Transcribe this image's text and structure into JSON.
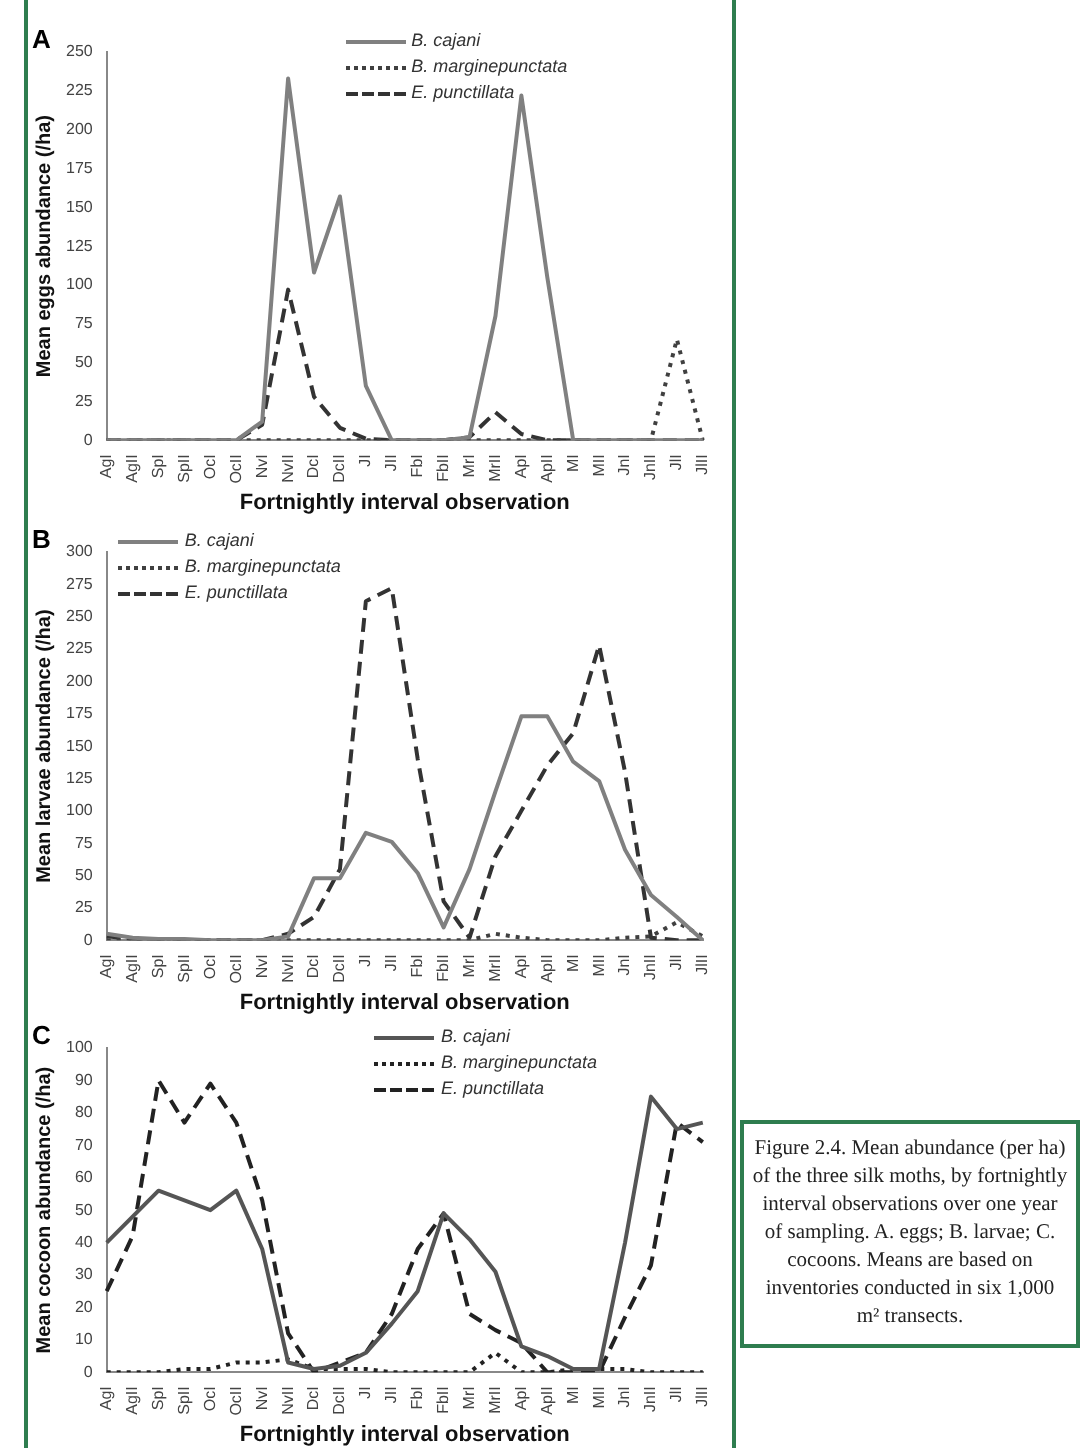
{
  "chart_data": [
    {
      "type": "line",
      "title": "A",
      "xlabel": "Fortnightly interval observation",
      "ylabel": "Mean eggs abundance (/ha)",
      "categories": [
        "AgI",
        "AgII",
        "SpI",
        "SpII",
        "OcI",
        "OcII",
        "NvI",
        "NvII",
        "DcI",
        "DcII",
        "JI",
        "JII",
        "FbI",
        "FbII",
        "MrI",
        "MrII",
        "ApI",
        "ApII",
        "MI",
        "MII",
        "JnI",
        "JnII",
        "JlI",
        "JlII"
      ],
      "series": [
        {
          "name": "B. cajani",
          "color": "#808080",
          "line_style": "solid",
          "values": [
            0,
            0,
            0,
            0,
            0,
            0,
            12,
            233,
            108,
            157,
            35,
            0,
            0,
            0,
            2,
            80,
            222,
            105,
            0,
            0,
            0,
            0,
            0,
            0
          ]
        },
        {
          "name": "B. marginepunctata",
          "color": "#404040",
          "line_style": "dotted",
          "values": [
            0,
            0,
            0,
            0,
            0,
            0,
            0,
            0,
            0,
            0,
            0,
            0,
            0,
            0,
            0,
            0,
            0,
            0,
            0,
            0,
            0,
            0,
            65,
            0
          ]
        },
        {
          "name": "E. punctillata",
          "color": "#333333",
          "line_style": "dashed",
          "values": [
            0,
            0,
            0,
            0,
            0,
            0,
            10,
            97,
            28,
            8,
            1,
            0,
            0,
            0,
            2,
            18,
            4,
            0,
            0,
            0,
            0,
            0,
            0,
            0
          ]
        }
      ],
      "ylim": [
        0,
        250
      ],
      "yticks": [
        0,
        25,
        50,
        75,
        100,
        125,
        150,
        175,
        200,
        225,
        250
      ],
      "grid": false,
      "legend": "top",
      "marker": "none"
    },
    {
      "type": "line",
      "title": "B",
      "xlabel": "Fortnightly interval observation",
      "ylabel": "Mean larvae abundance (/ha)",
      "categories": [
        "AgI",
        "AgII",
        "SpI",
        "SpII",
        "OcI",
        "OcII",
        "NvI",
        "NvII",
        "DcI",
        "DcII",
        "JI",
        "JII",
        "FbI",
        "FbII",
        "MrI",
        "MrII",
        "ApI",
        "ApII",
        "MI",
        "MII",
        "JnI",
        "JnII",
        "JlI",
        "JlII"
      ],
      "series": [
        {
          "name": "B. cajani",
          "color": "#808080",
          "line_style": "solid",
          "values": [
            5,
            2,
            1,
            1,
            0,
            0,
            0,
            3,
            48,
            48,
            83,
            76,
            52,
            10,
            55,
            115,
            173,
            173,
            138,
            123,
            70,
            35,
            18,
            0
          ]
        },
        {
          "name": "B. marginepunctata",
          "color": "#404040",
          "line_style": "dotted",
          "values": [
            0,
            0,
            0,
            0,
            0,
            0,
            0,
            0,
            0,
            0,
            0,
            0,
            0,
            0,
            0,
            5,
            2,
            0,
            0,
            0,
            2,
            3,
            14,
            3
          ]
        },
        {
          "name": "E. punctillata",
          "color": "#333333",
          "line_style": "dashed",
          "values": [
            3,
            1,
            0,
            0,
            0,
            0,
            0,
            5,
            18,
            55,
            262,
            272,
            140,
            30,
            2,
            65,
            100,
            135,
            160,
            228,
            130,
            2,
            0,
            0
          ]
        }
      ],
      "ylim": [
        0,
        300
      ],
      "yticks": [
        0,
        25,
        50,
        75,
        100,
        125,
        150,
        175,
        200,
        225,
        250,
        275,
        300
      ],
      "grid": false,
      "legend": "top left",
      "marker": "none"
    },
    {
      "type": "line",
      "title": "C",
      "xlabel": "Fortnightly interval observation",
      "ylabel": "Mean cocoon abundance (/ha)",
      "categories": [
        "AgI",
        "AgII",
        "SpI",
        "SpII",
        "OcI",
        "OcII",
        "NvI",
        "NvII",
        "DcI",
        "DcII",
        "JI",
        "JII",
        "FbI",
        "FbII",
        "MrI",
        "MrII",
        "ApI",
        "ApII",
        "MI",
        "MII",
        "JnI",
        "JnII",
        "JlI",
        "JlII"
      ],
      "series": [
        {
          "name": "B. cajani",
          "color": "#555555",
          "line_style": "solid",
          "values": [
            40,
            48,
            56,
            53,
            50,
            56,
            38,
            3,
            1,
            2,
            6,
            15,
            25,
            49,
            41,
            31,
            8,
            5,
            1,
            1,
            40,
            85,
            75,
            77
          ]
        },
        {
          "name": "B. marginepunctata",
          "color": "#222222",
          "line_style": "dotted",
          "values": [
            0,
            0,
            0,
            1,
            1,
            3,
            3,
            4,
            1,
            1,
            1,
            0,
            0,
            0,
            0,
            6,
            0,
            0,
            1,
            1,
            1,
            0,
            0,
            0
          ]
        },
        {
          "name": "E. punctillata",
          "color": "#222222",
          "line_style": "dashed",
          "values": [
            25,
            42,
            90,
            77,
            89,
            77,
            53,
            12,
            0,
            3,
            6,
            18,
            38,
            49,
            18,
            13,
            9,
            0,
            0,
            0,
            17,
            33,
            77,
            71
          ]
        }
      ],
      "ylim": [
        0,
        100
      ],
      "yticks": [
        0,
        10,
        20,
        30,
        40,
        50,
        60,
        70,
        80,
        90,
        100
      ],
      "grid": false,
      "legend": "top right",
      "marker": "none",
      "annotations": [
        "Figure 2.4. Mean abundance (per ha) of the three silk moths, by fortnightly interval observations over one year of sampling. A. eggs; B. larvae; C. cocoons. Means are based on inventories conducted in six 1,000 m² transects."
      ]
    }
  ]
}
